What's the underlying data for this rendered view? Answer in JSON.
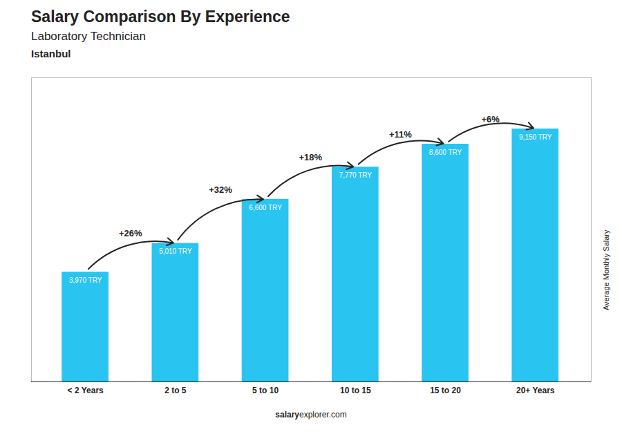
{
  "chart_data": {
    "type": "bar",
    "title": "Salary Comparison By Experience",
    "subtitle": "Laboratory Technician",
    "categories": [
      "< 2 Years",
      "2 to 5",
      "5 to 10",
      "10 to 15",
      "15 to 20",
      "20+ Years"
    ],
    "values": [
      3970,
      5010,
      6600,
      7770,
      8600,
      9150
    ],
    "value_labels": [
      "3,970 TRY",
      "5,010 TRY",
      "6,600 TRY",
      "7,770 TRY",
      "8,600 TRY",
      "9,150 TRY"
    ],
    "data_labels": true,
    "color": "#29C4F0",
    "ylabel": "Average Monthly Salary",
    "ylim": [
      0,
      11000
    ],
    "tick_labels": "x",
    "grid": false,
    "annotations": {
      "city": "Istanbul",
      "changes": [
        {
          "category": "2 to 5",
          "text": "+26%"
        },
        {
          "category": "5 to 10",
          "text": "+32%"
        },
        {
          "category": "10 to 15",
          "text": "+18%"
        },
        {
          "category": "15 to 20",
          "text": "+11%"
        },
        {
          "category": "20+ Years",
          "text": "+6%"
        }
      ],
      "footer": [
        "salary",
        "explorer.com"
      ]
    }
  }
}
